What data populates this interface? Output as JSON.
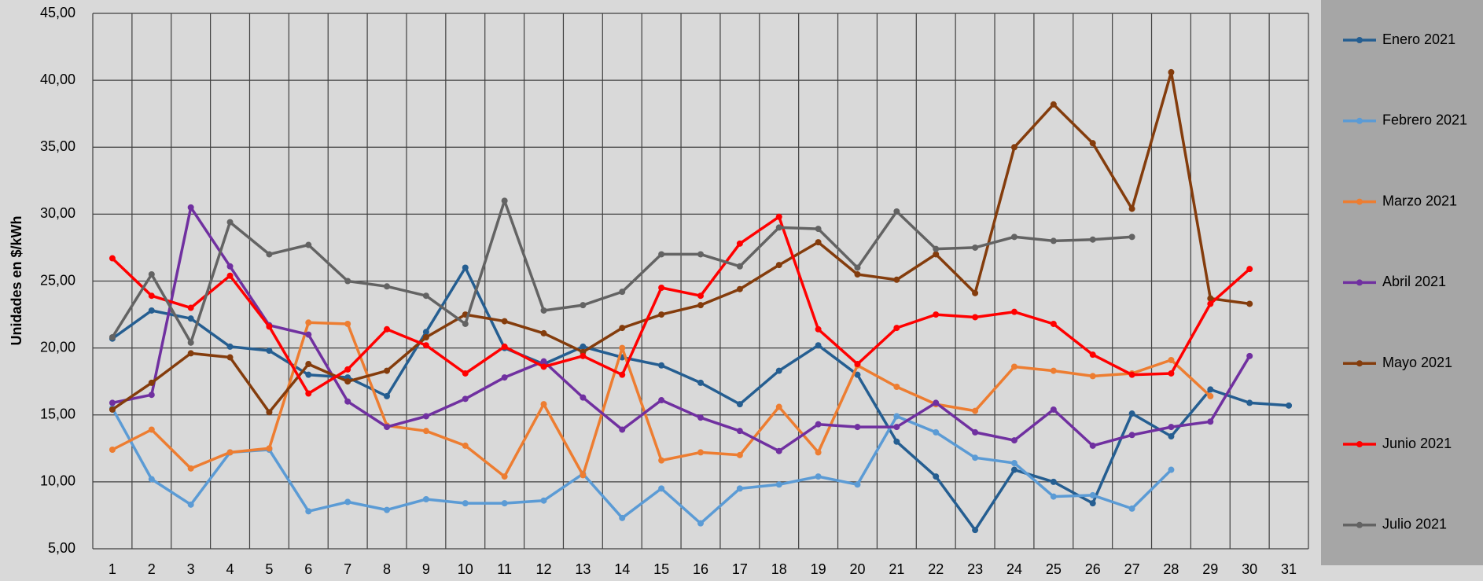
{
  "chart_data": {
    "type": "line",
    "ylabel": "Unidades en $/kWh",
    "categories": [
      "1",
      "2",
      "3",
      "4",
      "5",
      "6",
      "7",
      "8",
      "9",
      "10",
      "11",
      "12",
      "13",
      "14",
      "15",
      "16",
      "17",
      "18",
      "19",
      "20",
      "21",
      "22",
      "23",
      "24",
      "25",
      "26",
      "27",
      "28",
      "29",
      "30",
      "31"
    ],
    "ylim": [
      5,
      45
    ],
    "yticks": [
      {
        "value": 5,
        "label": "5,00"
      },
      {
        "value": 10,
        "label": "10,00"
      },
      {
        "value": 15,
        "label": "15,00"
      },
      {
        "value": 20,
        "label": "20,00"
      },
      {
        "value": 25,
        "label": "25,00"
      },
      {
        "value": 30,
        "label": "30,00"
      },
      {
        "value": 35,
        "label": "35,00"
      },
      {
        "value": 40,
        "label": "40,00"
      },
      {
        "value": 45,
        "label": "45,00"
      }
    ],
    "grid": true,
    "legend": "right",
    "series": [
      {
        "name": "Enero 2021",
        "color": "#255e91",
        "values": [
          20.7,
          22.8,
          22.2,
          20.1,
          19.8,
          18,
          17.8,
          16.4,
          21.2,
          26,
          20,
          18.8,
          20.1,
          19.3,
          18.7,
          17.4,
          15.8,
          18.3,
          20.2,
          18,
          13,
          10.4,
          6.4,
          10.9,
          10,
          8.4,
          15.1,
          13.4,
          16.9,
          15.9,
          15.7
        ]
      },
      {
        "name": "Febrero 2021",
        "color": "#5b9bd5",
        "values": [
          15.5,
          10.2,
          8.3,
          12.2,
          12.4,
          7.8,
          8.5,
          7.9,
          8.7,
          8.4,
          8.4,
          8.6,
          10.6,
          7.3,
          9.5,
          6.9,
          9.5,
          9.8,
          10.4,
          9.8,
          14.9,
          13.7,
          11.8,
          11.4,
          8.9,
          9,
          8,
          10.9,
          null,
          null,
          null
        ]
      },
      {
        "name": "Marzo 2021",
        "color": "#ed7d31",
        "values": [
          12.4,
          13.9,
          11,
          12.2,
          12.5,
          21.9,
          21.8,
          14.2,
          13.8,
          12.7,
          10.4,
          15.8,
          10.5,
          20,
          11.6,
          12.2,
          12,
          15.6,
          12.2,
          18.7,
          17.1,
          15.8,
          15.3,
          18.6,
          18.3,
          17.9,
          18.1,
          19.1,
          16.4,
          null,
          null
        ]
      },
      {
        "name": "Abril 2021",
        "color": "#7030a0",
        "values": [
          15.9,
          16.5,
          30.5,
          26.1,
          21.7,
          21,
          16,
          14.1,
          14.9,
          16.2,
          17.8,
          19,
          16.3,
          13.9,
          16.1,
          14.8,
          13.8,
          12.3,
          14.3,
          14.1,
          14.1,
          15.9,
          13.7,
          13.1,
          15.4,
          12.7,
          13.5,
          14.1,
          14.5,
          19.4,
          null
        ]
      },
      {
        "name": "Mayo 2021",
        "color": "#843c0c",
        "values": [
          15.4,
          17.4,
          19.6,
          19.3,
          15.2,
          18.8,
          17.5,
          18.3,
          20.8,
          22.5,
          22,
          21.1,
          19.7,
          21.5,
          22.5,
          23.2,
          24.4,
          26.2,
          27.9,
          25.5,
          25.1,
          27,
          24.1,
          35,
          38.2,
          35.3,
          30.4,
          40.6,
          23.7,
          23.3,
          null
        ]
      },
      {
        "name": "Junio 2021",
        "color": "#ff0000",
        "values": [
          26.7,
          23.9,
          23,
          25.4,
          21.6,
          16.6,
          18.4,
          21.4,
          20.2,
          18.1,
          20.1,
          18.6,
          19.4,
          18,
          24.5,
          23.9,
          27.8,
          29.8,
          21.4,
          18.8,
          21.5,
          22.5,
          22.3,
          22.7,
          21.8,
          19.5,
          18,
          18.1,
          23.3,
          25.9,
          null
        ]
      },
      {
        "name": "Julio 2021",
        "color": "#636363",
        "values": [
          20.8,
          25.5,
          20.4,
          29.4,
          27,
          27.7,
          25,
          24.6,
          23.9,
          21.8,
          31,
          22.8,
          23.2,
          24.2,
          27,
          27,
          26.1,
          29,
          28.9,
          26,
          30.2,
          27.4,
          27.5,
          28.3,
          28,
          28.1,
          28.3,
          null,
          null,
          null,
          null
        ]
      }
    ]
  }
}
